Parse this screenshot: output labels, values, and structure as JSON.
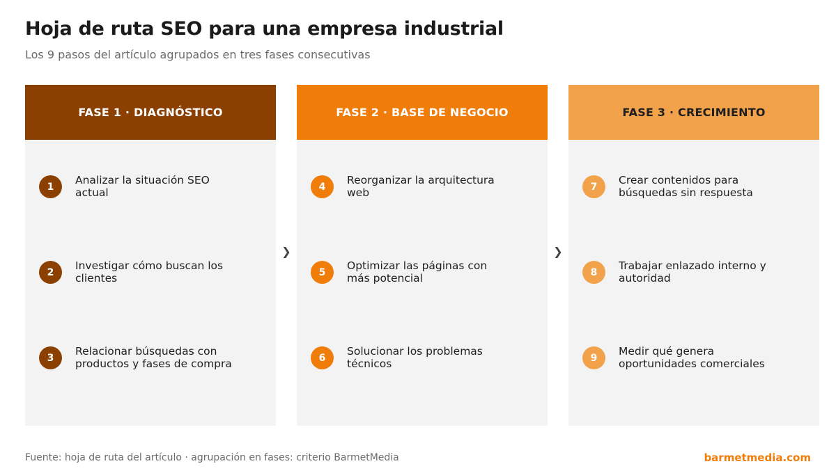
{
  "title": "Hoja de ruta SEO para una empresa industrial",
  "subtitle": "Los 9 pasos del artículo agrupados en tres fases consecutivas",
  "arrow_glyph": "❯",
  "phases": [
    {
      "label": "FASE 1 · DIAGNÓSTICO",
      "color": "#8b3f00",
      "text_color": "#ffffff",
      "steps": [
        {
          "num": "1",
          "text": "Analizar la situación SEO actual"
        },
        {
          "num": "2",
          "text": "Investigar cómo buscan los clientes"
        },
        {
          "num": "3",
          "text": "Relacionar búsquedas con productos y fases de compra"
        }
      ]
    },
    {
      "label": "FASE 2 · BASE DE NEGOCIO",
      "color": "#f07c0a",
      "text_color": "#ffffff",
      "steps": [
        {
          "num": "4",
          "text": "Reorganizar la arquitectura web"
        },
        {
          "num": "5",
          "text": "Optimizar las páginas con más potencial"
        },
        {
          "num": "6",
          "text": "Solucionar los problemas técnicos"
        }
      ]
    },
    {
      "label": "FASE 3 · CRECIMIENTO",
      "color": "#f2a24a",
      "text_color": "#1f1f1f",
      "steps": [
        {
          "num": "7",
          "text": "Crear contenidos para búsquedas sin respuesta"
        },
        {
          "num": "8",
          "text": "Trabajar enlazado interno y autoridad"
        },
        {
          "num": "9",
          "text": "Medir qué genera oportunidades comerciales"
        }
      ]
    }
  ],
  "source": "Fuente: hoja de ruta del artículo · agrupación en fases: criterio BarmetMedia",
  "brand": "barmetmedia.com"
}
